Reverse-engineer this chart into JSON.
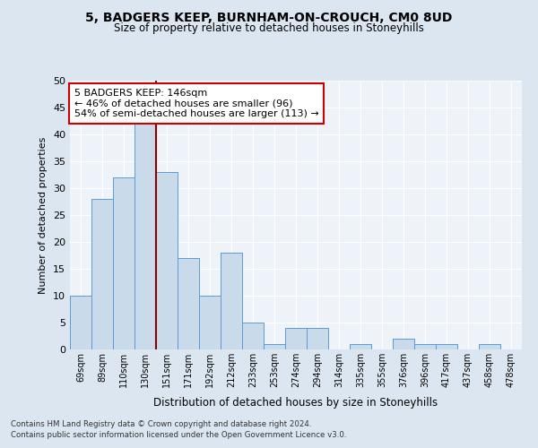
{
  "title1": "5, BADGERS KEEP, BURNHAM-ON-CROUCH, CM0 8UD",
  "title2": "Size of property relative to detached houses in Stoneyhills",
  "xlabel": "Distribution of detached houses by size in Stoneyhills",
  "ylabel": "Number of detached properties",
  "categories": [
    "69sqm",
    "89sqm",
    "110sqm",
    "130sqm",
    "151sqm",
    "171sqm",
    "192sqm",
    "212sqm",
    "233sqm",
    "253sqm",
    "274sqm",
    "294sqm",
    "314sqm",
    "335sqm",
    "355sqm",
    "376sqm",
    "396sqm",
    "417sqm",
    "437sqm",
    "458sqm",
    "478sqm"
  ],
  "values": [
    10,
    28,
    32,
    42,
    33,
    17,
    10,
    18,
    5,
    1,
    4,
    4,
    0,
    1,
    0,
    2,
    1,
    1,
    0,
    1,
    0
  ],
  "bar_color": "#c9daea",
  "bar_edge_color": "#5b9bd5",
  "vline_x_index": 3.5,
  "vline_color": "#8b0000",
  "annotation_text": "5 BADGERS KEEP: 146sqm\n← 46% of detached houses are smaller (96)\n54% of semi-detached houses are larger (113) →",
  "annotation_box_color": "#ffffff",
  "annotation_box_edge_color": "#cc0000",
  "ylim": [
    0,
    50
  ],
  "yticks": [
    0,
    5,
    10,
    15,
    20,
    25,
    30,
    35,
    40,
    45,
    50
  ],
  "bg_color": "#dce6f1",
  "plot_bg_color": "#eef3f9",
  "grid_color": "#ffffff",
  "footer1": "Contains HM Land Registry data © Crown copyright and database right 2024.",
  "footer2": "Contains public sector information licensed under the Open Government Licence v3.0."
}
